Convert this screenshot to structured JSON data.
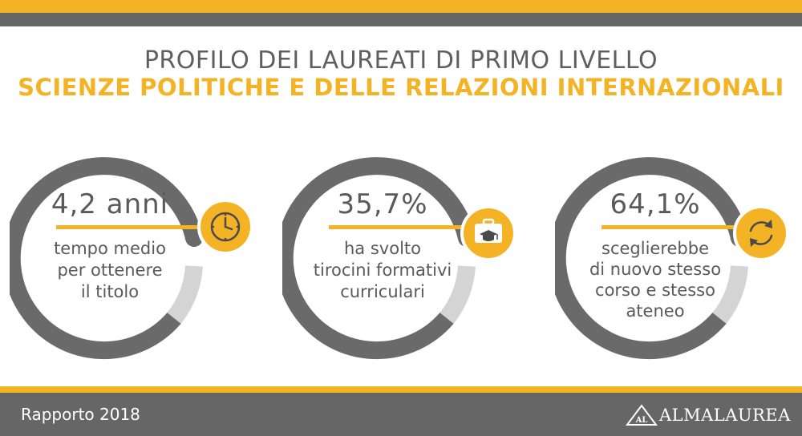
{
  "header": {
    "title_line1": "PROFILO DEI LAUREATI DI PRIMO LIVELLO",
    "title_line2": "SCIENZE POLITICHE E DELLE RELAZIONI INTERNAZIONALI"
  },
  "stats": [
    {
      "value": "4,2 anni",
      "lines": [
        "tempo medio",
        "per ottenere",
        "il titolo"
      ],
      "icon": "clock-icon"
    },
    {
      "value": "35,7%",
      "lines": [
        "ha svolto",
        "tirocini formativi",
        "curriculari"
      ],
      "icon": "briefcase-graduation-icon"
    },
    {
      "value": "64,1%",
      "lines": [
        "sceglierebbe",
        "di nuovo stesso",
        "corso e stesso",
        "ateneo"
      ],
      "icon": "refresh-icon"
    }
  ],
  "footer": {
    "report": "Rapporto 2018",
    "logo_mark": "AL",
    "logo_text": "ALMALAUREA"
  },
  "colors": {
    "accent": "#f4b324",
    "dark": "#666666",
    "text": "#5a5a5a"
  }
}
